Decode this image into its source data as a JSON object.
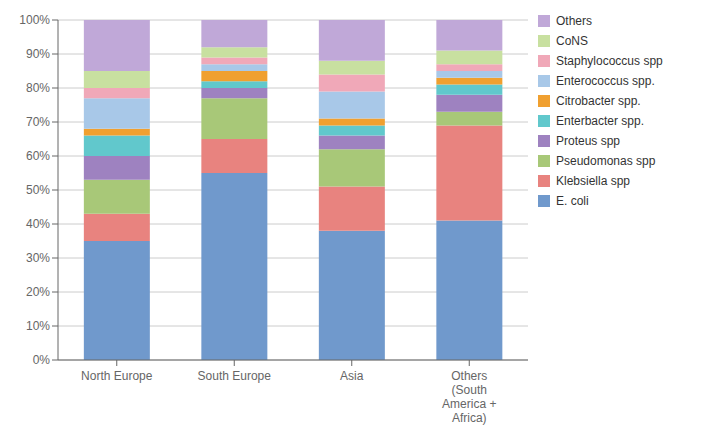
{
  "chart_data": {
    "type": "bar",
    "stacked": true,
    "grid": true,
    "legend": "right",
    "categories": [
      "North Europe",
      "South Europe",
      "Asia",
      "Others\n(South\nAmerica +\nAfrica)"
    ],
    "series": [
      {
        "name": "E. coli",
        "color": "#7099cc",
        "values": [
          35,
          55,
          38,
          41
        ]
      },
      {
        "name": "Klebsiella spp",
        "color": "#e8837f",
        "values": [
          8,
          10,
          13,
          28
        ]
      },
      {
        "name": "Pseudomonas spp",
        "color": "#a8c878",
        "values": [
          10,
          12,
          11,
          4
        ]
      },
      {
        "name": "Proteus spp",
        "color": "#9e82c0",
        "values": [
          7,
          3,
          4,
          5
        ]
      },
      {
        "name": "Enterbacter spp.",
        "color": "#61c8cc",
        "values": [
          6,
          2,
          3,
          3
        ]
      },
      {
        "name": "Citrobacter spp.",
        "color": "#f0a030",
        "values": [
          2,
          3,
          2,
          2
        ]
      },
      {
        "name": "Enterococcus spp.",
        "color": "#a8c8e8",
        "values": [
          9,
          2,
          8,
          2
        ]
      },
      {
        "name": "Staphylococcus spp",
        "color": "#f0a8b8",
        "values": [
          3,
          2,
          5,
          2
        ]
      },
      {
        "name": "CoNS",
        "color": "#c8e0a0",
        "values": [
          5,
          3,
          4,
          4
        ]
      },
      {
        "name": "Others",
        "color": "#c0a8d8",
        "values": [
          15,
          8,
          12,
          9
        ]
      }
    ],
    "ylim": [
      0,
      100
    ],
    "yticks": [
      {
        "value": 0,
        "label": "0%"
      },
      {
        "value": 10,
        "label": "10%"
      },
      {
        "value": 20,
        "label": "20%"
      },
      {
        "value": 30,
        "label": "30%"
      },
      {
        "value": 40,
        "label": "40%"
      },
      {
        "value": 50,
        "label": "50%"
      },
      {
        "value": 60,
        "label": "60%"
      },
      {
        "value": 70,
        "label": "70%"
      },
      {
        "value": 80,
        "label": "80%"
      },
      {
        "value": 90,
        "label": "90%"
      },
      {
        "value": 100,
        "label": "100%"
      }
    ]
  }
}
